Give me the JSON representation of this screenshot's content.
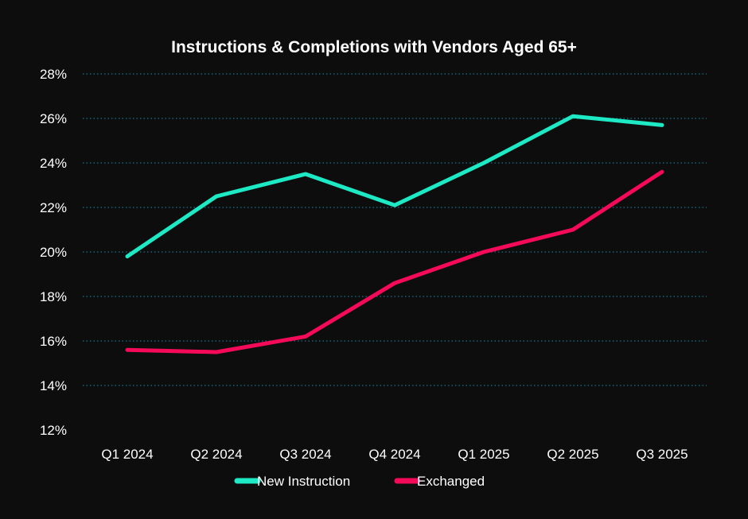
{
  "chart_data": {
    "type": "line",
    "title": "Instructions & Completions with Vendors Aged 65+",
    "xlabel": "",
    "ylabel": "",
    "categories": [
      "Q1 2024",
      "Q2 2024",
      "Q3 2024",
      "Q4 2024",
      "Q1 2025",
      "Q2 2025",
      "Q3 2025"
    ],
    "ylim": [
      12,
      28
    ],
    "yticks": [
      12,
      14,
      16,
      18,
      20,
      22,
      24,
      26,
      28
    ],
    "ytick_labels": [
      "12%",
      "14%",
      "16%",
      "18%",
      "20%",
      "22%",
      "24%",
      "26%",
      "28%"
    ],
    "grid": true,
    "legend_position": "bottom",
    "series": [
      {
        "name": "New Instruction",
        "color": "#1de9c4",
        "values": [
          19.8,
          22.5,
          23.5,
          22.1,
          24.0,
          26.1,
          25.7
        ]
      },
      {
        "name": "Exchanged",
        "color": "#f50a5a",
        "values": [
          15.6,
          15.5,
          16.2,
          18.6,
          20.0,
          21.0,
          23.6
        ]
      }
    ],
    "colors": {
      "background": "#0d0d0d",
      "grid": "#1a5f7a",
      "text": "#ffffff"
    }
  }
}
